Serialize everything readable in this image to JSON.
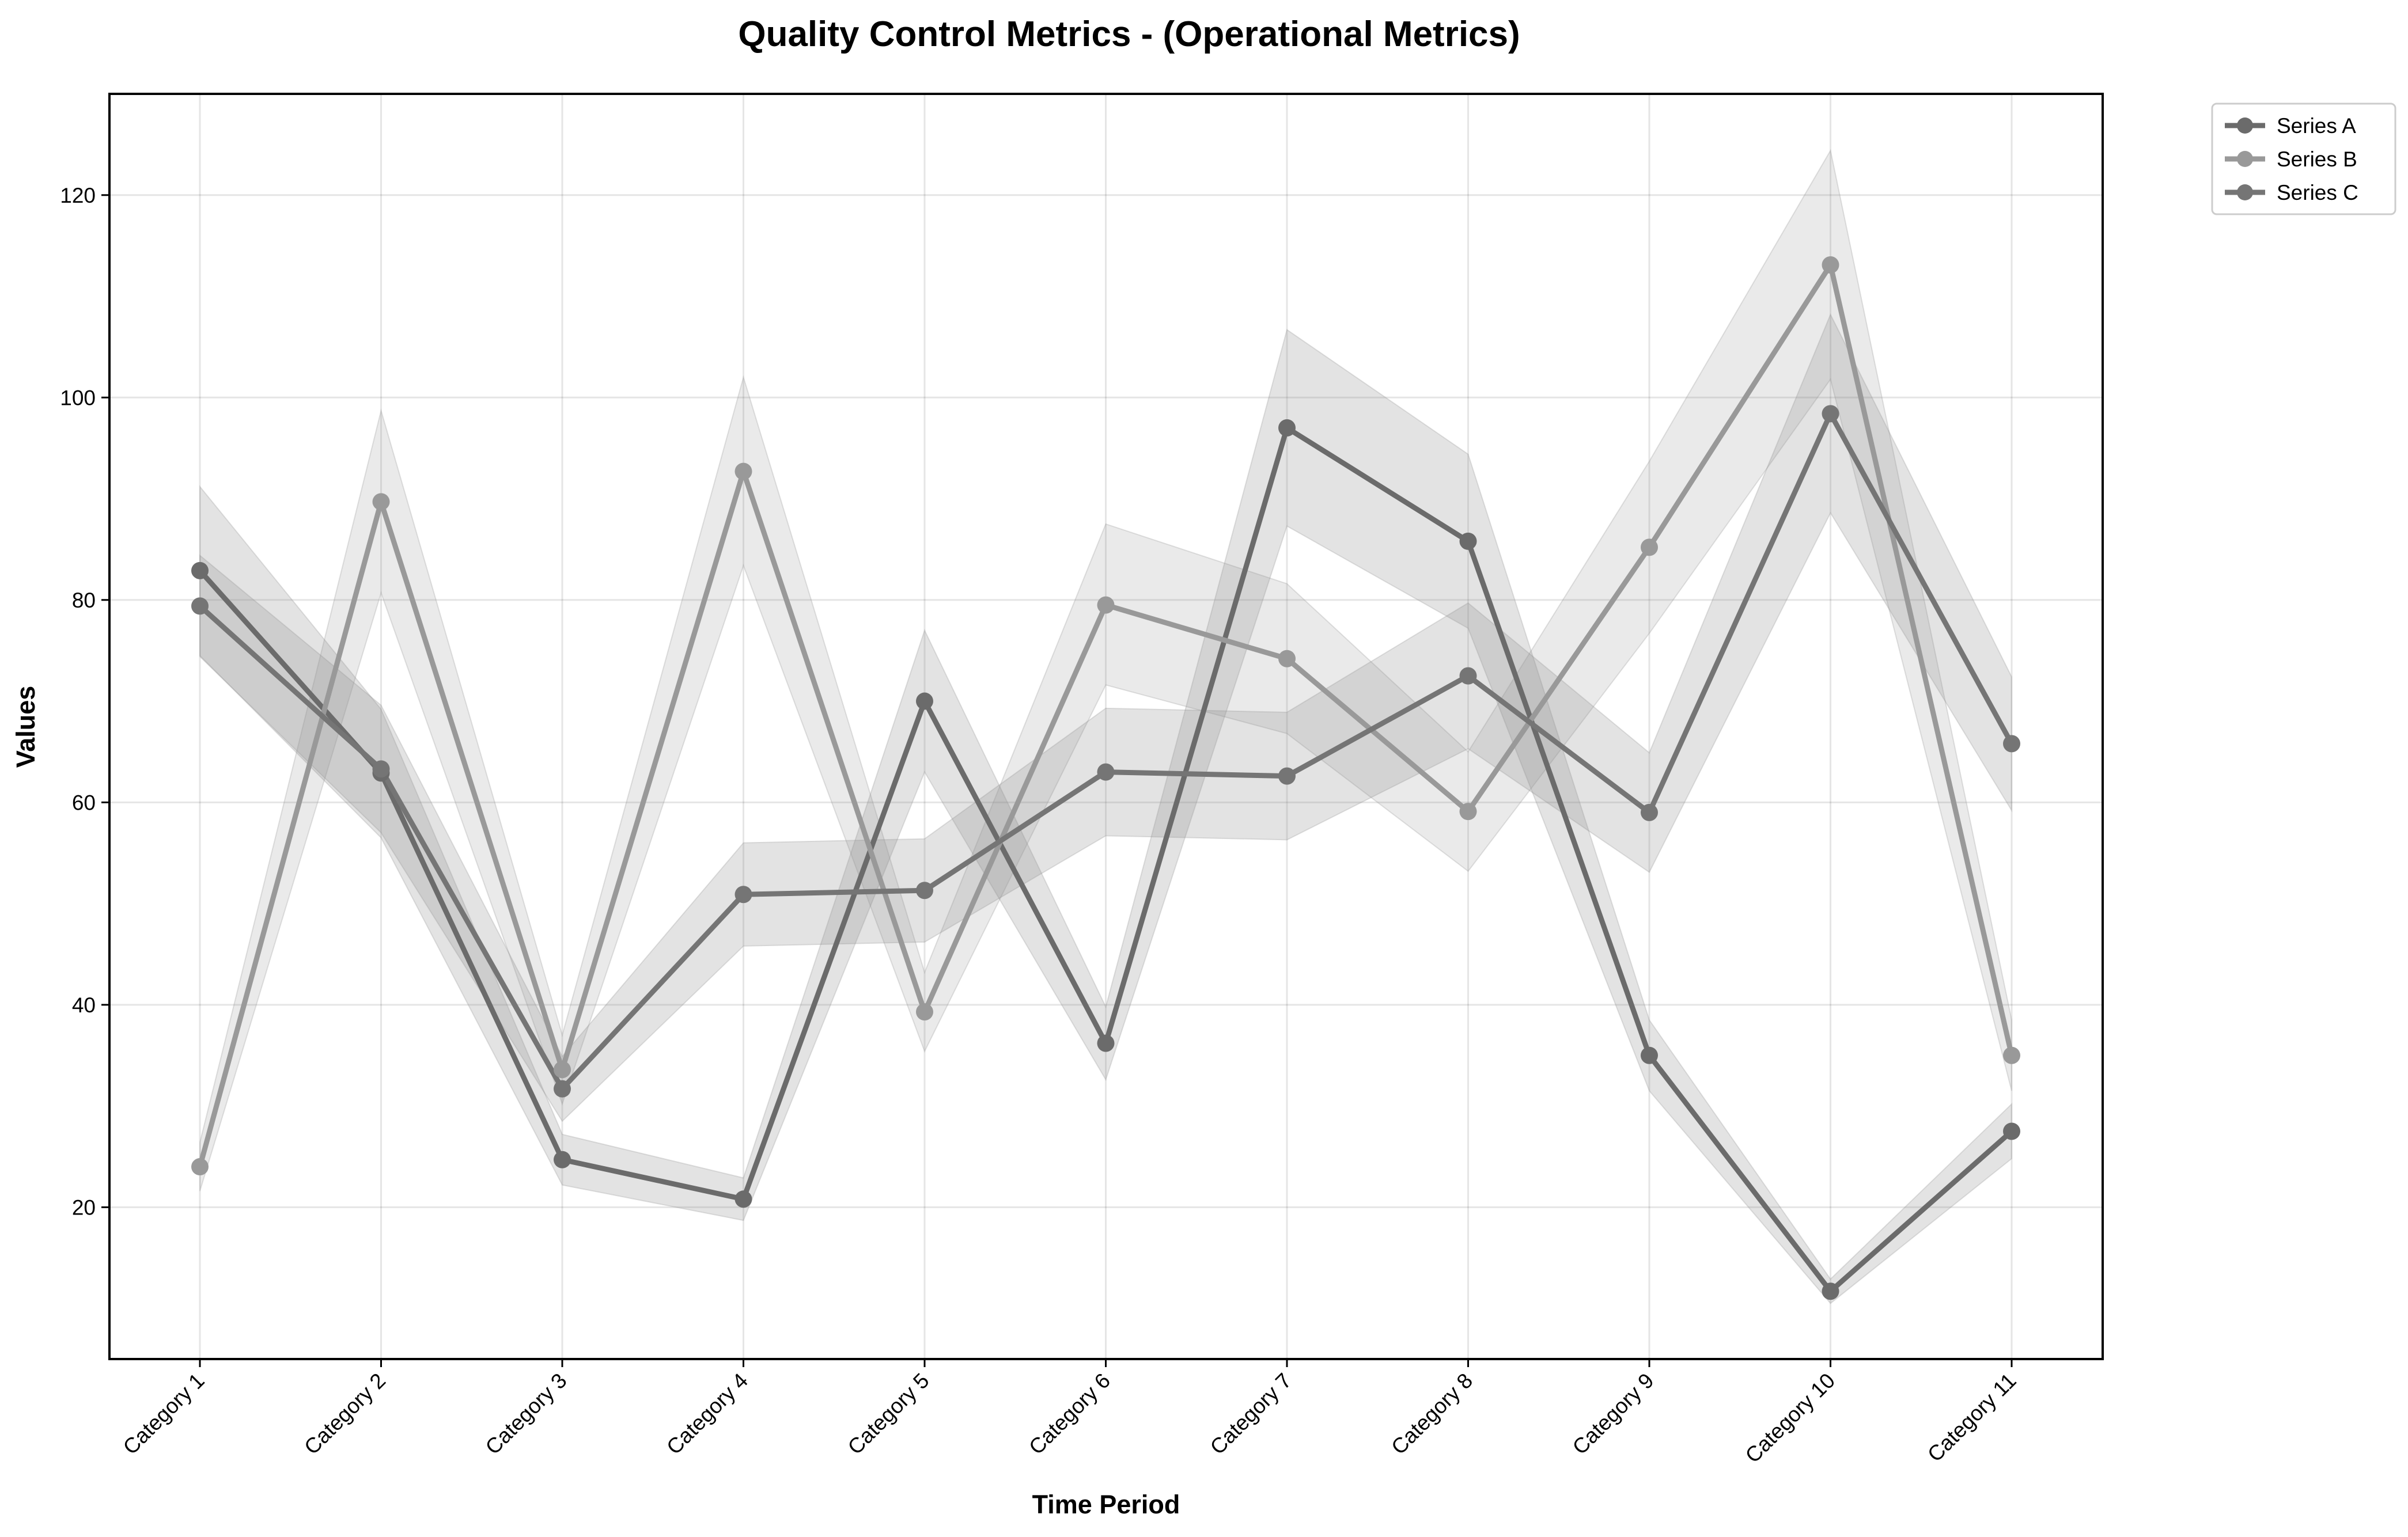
{
  "chart_data": {
    "type": "line",
    "title": "Quality Control Metrics - (Operational Metrics)",
    "xlabel": "Time Period",
    "ylabel": "Values",
    "categories": [
      "Category 1",
      "Category 2",
      "Category 3",
      "Category 4",
      "Category 5",
      "Category 6",
      "Category 7",
      "Category 8",
      "Category 9",
      "Category 10",
      "Category 11"
    ],
    "ylim": [
      5,
      130
    ],
    "yticks": [
      20,
      40,
      60,
      80,
      100,
      120
    ],
    "grid": true,
    "legend_position": "outside-top-right",
    "series": [
      {
        "name": "Series A",
        "color": "#6b6b6b",
        "values": [
          82.9,
          62.9,
          24.7,
          20.8,
          70.0,
          36.2,
          97.0,
          85.8,
          35.0,
          11.7,
          27.5
        ],
        "lower": [
          74.5,
          56.5,
          22.2,
          18.7,
          63.0,
          32.6,
          87.3,
          77.2,
          31.5,
          10.5,
          24.8
        ],
        "upper": [
          91.2,
          69.2,
          27.2,
          22.9,
          77.0,
          39.8,
          106.7,
          94.4,
          38.5,
          12.9,
          30.2
        ]
      },
      {
        "name": "Series B",
        "color": "#999999",
        "values": [
          24.0,
          89.7,
          33.6,
          92.7,
          39.3,
          79.5,
          74.2,
          59.1,
          85.2,
          113.1,
          35.0
        ],
        "lower": [
          21.6,
          80.7,
          30.2,
          83.4,
          35.4,
          71.6,
          66.8,
          53.2,
          76.7,
          101.8,
          31.5
        ],
        "upper": [
          26.4,
          98.7,
          37.0,
          102.0,
          43.2,
          87.5,
          81.6,
          65.0,
          93.7,
          124.4,
          38.5
        ]
      },
      {
        "name": "Series C",
        "color": "#757575",
        "values": [
          79.4,
          63.3,
          31.7,
          50.9,
          51.3,
          63.0,
          62.6,
          72.5,
          59.0,
          98.4,
          65.8
        ],
        "lower": [
          74.4,
          57.0,
          28.5,
          45.8,
          46.2,
          56.7,
          56.3,
          65.3,
          53.1,
          88.6,
          59.2
        ],
        "upper": [
          84.4,
          69.6,
          34.9,
          56.0,
          56.4,
          69.3,
          68.9,
          79.7,
          64.9,
          108.2,
          72.4
        ]
      }
    ]
  }
}
